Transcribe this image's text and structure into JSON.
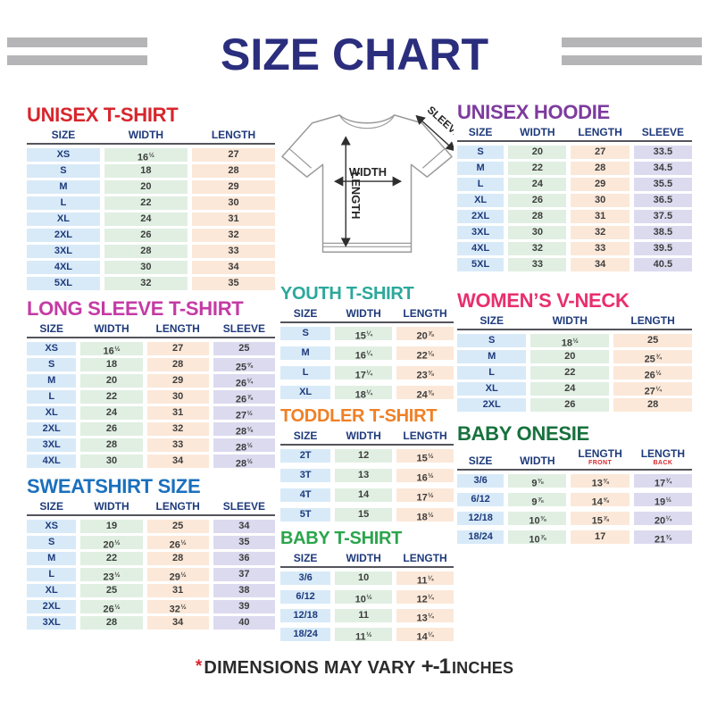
{
  "header": {
    "title": "SIZE CHART"
  },
  "footer": {
    "asterisk": "*",
    "text": "DIMENSIONS MAY VARY",
    "tolerance": "+-1",
    "unit": "INCHES"
  },
  "diagram": {
    "width_label": "WIDTH",
    "length_label": "LENGTH",
    "sleeve_label": "SLEEVE"
  },
  "colors": {
    "title": "#2b2e7d",
    "header_bars": "#b5b5b7",
    "table_header_text": "#1e3a7b",
    "value_text": "#3d3d3d",
    "header_rule": "#54545c",
    "footer_asterisk": "#d7262d",
    "cells": {
      "size": "#d8eaf8",
      "width": "#e0efe2",
      "length": "#fce8d8",
      "sleeve": "#dcdaef"
    }
  },
  "tables": {
    "unisex_tshirt": {
      "title": "UNISEX T-SHIRT",
      "title_color": "#d7262d",
      "columns": [
        {
          "label": "SIZE",
          "sub": ""
        },
        {
          "label": "WIDTH",
          "sub": ""
        },
        {
          "label": "LENGTH",
          "sub": ""
        }
      ],
      "column_types": [
        "size",
        "width",
        "length"
      ],
      "rows": [
        [
          "XS",
          "16½",
          "27"
        ],
        [
          "S",
          "18",
          "28"
        ],
        [
          "M",
          "20",
          "29"
        ],
        [
          "L",
          "22",
          "30"
        ],
        [
          "XL",
          "24",
          "31"
        ],
        [
          "2XL",
          "26",
          "32"
        ],
        [
          "3XL",
          "28",
          "33"
        ],
        [
          "4XL",
          "30",
          "34"
        ],
        [
          "5XL",
          "32",
          "35"
        ]
      ]
    },
    "unisex_hoodie": {
      "title": "UNISEX HOODIE",
      "title_color": "#7d3b9e",
      "columns": [
        {
          "label": "SIZE",
          "sub": ""
        },
        {
          "label": "WIDTH",
          "sub": ""
        },
        {
          "label": "LENGTH",
          "sub": ""
        },
        {
          "label": "SLEEVE",
          "sub": ""
        }
      ],
      "column_types": [
        "size",
        "width",
        "length",
        "sleeve"
      ],
      "rows": [
        [
          "S",
          "20",
          "27",
          "33.5"
        ],
        [
          "M",
          "22",
          "28",
          "34.5"
        ],
        [
          "L",
          "24",
          "29",
          "35.5"
        ],
        [
          "XL",
          "26",
          "30",
          "36.5"
        ],
        [
          "2XL",
          "28",
          "31",
          "37.5"
        ],
        [
          "3XL",
          "30",
          "32",
          "38.5"
        ],
        [
          "4XL",
          "32",
          "33",
          "39.5"
        ],
        [
          "5XL",
          "33",
          "34",
          "40.5"
        ]
      ]
    },
    "long_sleeve_tshirt": {
      "title": "LONG SLEEVE T-SHIRT",
      "title_color": "#c43ba4",
      "columns": [
        {
          "label": "SIZE",
          "sub": ""
        },
        {
          "label": "WIDTH",
          "sub": ""
        },
        {
          "label": "LENGTH",
          "sub": ""
        },
        {
          "label": "SLEEVE",
          "sub": ""
        }
      ],
      "column_types": [
        "size",
        "width",
        "length",
        "sleeve"
      ],
      "rows": [
        [
          "XS",
          "16½",
          "27",
          "25"
        ],
        [
          "S",
          "18",
          "28",
          "25⅝"
        ],
        [
          "M",
          "20",
          "29",
          "26¼"
        ],
        [
          "L",
          "22",
          "30",
          "26⅞"
        ],
        [
          "XL",
          "24",
          "31",
          "27½"
        ],
        [
          "2XL",
          "26",
          "32",
          "28⅛"
        ],
        [
          "3XL",
          "28",
          "33",
          "28½"
        ],
        [
          "4XL",
          "30",
          "34",
          "28½"
        ]
      ]
    },
    "sweatshirt": {
      "title": "SWEATSHIRT SIZE",
      "title_color": "#1a70bd",
      "columns": [
        {
          "label": "SIZE",
          "sub": ""
        },
        {
          "label": "WIDTH",
          "sub": ""
        },
        {
          "label": "LENGTH",
          "sub": ""
        },
        {
          "label": "SLEEVE",
          "sub": ""
        }
      ],
      "column_types": [
        "size",
        "width",
        "length",
        "sleeve"
      ],
      "rows": [
        [
          "XS",
          "19",
          "25",
          "34"
        ],
        [
          "S",
          "20½",
          "26½",
          "35"
        ],
        [
          "M",
          "22",
          "28",
          "36"
        ],
        [
          "L",
          "23½",
          "29½",
          "37"
        ],
        [
          "XL",
          "25",
          "31",
          "38"
        ],
        [
          "2XL",
          "26½",
          "32½",
          "39"
        ],
        [
          "3XL",
          "28",
          "34",
          "40"
        ]
      ]
    },
    "youth_tshirt": {
      "title": "YOUTH T-SHIRT",
      "title_color": "#2ca89a",
      "columns": [
        {
          "label": "SIZE",
          "sub": ""
        },
        {
          "label": "WIDTH",
          "sub": ""
        },
        {
          "label": "LENGTH",
          "sub": ""
        }
      ],
      "column_types": [
        "size",
        "width",
        "length"
      ],
      "rows": [
        [
          "S",
          "15¼",
          "20⅞"
        ],
        [
          "M",
          "16¼",
          "22⅛"
        ],
        [
          "L",
          "17¼",
          "23⅜"
        ],
        [
          "XL",
          "18¼",
          "24⅜"
        ]
      ]
    },
    "toddler_tshirt": {
      "title": "TODDLER T-SHIRT",
      "title_color": "#f08026",
      "columns": [
        {
          "label": "SIZE",
          "sub": ""
        },
        {
          "label": "WIDTH",
          "sub": ""
        },
        {
          "label": "LENGTH",
          "sub": ""
        }
      ],
      "column_types": [
        "size",
        "width",
        "length"
      ],
      "rows": [
        [
          "2T",
          "12",
          "15½"
        ],
        [
          "3T",
          "13",
          "16½"
        ],
        [
          "4T",
          "14",
          "17½"
        ],
        [
          "5T",
          "15",
          "18½"
        ]
      ]
    },
    "baby_tshirt": {
      "title": "BABY T-SHIRT",
      "title_color": "#2aa54b",
      "columns": [
        {
          "label": "SIZE",
          "sub": ""
        },
        {
          "label": "WIDTH",
          "sub": ""
        },
        {
          "label": "LENGTH",
          "sub": ""
        }
      ],
      "column_types": [
        "size",
        "width",
        "length"
      ],
      "rows": [
        [
          "3/6",
          "10",
          "11¼"
        ],
        [
          "6/12",
          "10½",
          "12¼"
        ],
        [
          "12/18",
          "11",
          "13¼"
        ],
        [
          "18/24",
          "11½",
          "14¼"
        ]
      ]
    },
    "womens_vneck": {
      "title": "WOMEN’S V-NECK",
      "title_color": "#e82f6d",
      "columns": [
        {
          "label": "SIZE",
          "sub": ""
        },
        {
          "label": "WIDTH",
          "sub": ""
        },
        {
          "label": "LENGTH",
          "sub": ""
        }
      ],
      "column_types": [
        "size",
        "width",
        "length"
      ],
      "rows": [
        [
          "S",
          "18½",
          "25"
        ],
        [
          "M",
          "20",
          "25¾"
        ],
        [
          "L",
          "22",
          "26½"
        ],
        [
          "XL",
          "24",
          "27¼"
        ],
        [
          "2XL",
          "26",
          "28"
        ]
      ]
    },
    "baby_onesie": {
      "title": "BABY ONESIE",
      "title_color": "#17713d",
      "columns": [
        {
          "label": "SIZE",
          "sub": ""
        },
        {
          "label": "WIDTH",
          "sub": ""
        },
        {
          "label": "LENGTH",
          "sub": "FRONT"
        },
        {
          "label": "LENGTH",
          "sub": "BACK"
        }
      ],
      "column_types": [
        "size",
        "width",
        "length",
        "sleeve"
      ],
      "rows": [
        [
          "3/6",
          "9⅜",
          "13⅜",
          "17¾"
        ],
        [
          "6/12",
          "9⅞",
          "14⅝",
          "19½"
        ],
        [
          "12/18",
          "10⅜",
          "15⅞",
          "20¼"
        ],
        [
          "18/24",
          "10⅞",
          "17",
          "21⅜"
        ]
      ]
    }
  }
}
